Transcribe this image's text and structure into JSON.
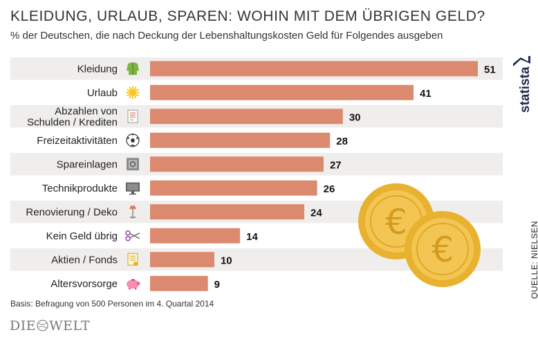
{
  "header": {
    "title": "KLEIDUNG, URLAUB, SPAREN: WOHIN MIT DEM ÜBRIGEN GELD?",
    "subtitle": "% der Deutschen, die nach Deckung der Lebenshaltungskosten Geld für Folgendes ausgeben"
  },
  "chart_data": {
    "type": "bar",
    "orientation": "horizontal",
    "title": "KLEIDUNG, URLAUB, SPAREN: WOHIN MIT DEM ÜBRIGEN GELD?",
    "subtitle": "% der Deutschen, die nach Deckung der Lebenshaltungskosten Geld für Folgendes ausgeben",
    "xlabel": "",
    "ylabel": "",
    "xlim": [
      0,
      51
    ],
    "categories": [
      [
        "Kleidung"
      ],
      [
        "Urlaub"
      ],
      [
        "Abzahlen von",
        "Schulden / Krediten"
      ],
      [
        "Freizeitaktivitäten"
      ],
      [
        "Spareinlagen"
      ],
      [
        "Technikprodukte"
      ],
      [
        "Renovierung / Deko"
      ],
      [
        "Kein Geld übrig"
      ],
      [
        "Aktien / Fonds"
      ],
      [
        "Altersvorsorge"
      ]
    ],
    "values": [
      51,
      41,
      30,
      28,
      27,
      26,
      24,
      14,
      10,
      9
    ],
    "icons": [
      "jacket-icon",
      "sun-icon",
      "invoice-icon",
      "soccer-ball-icon",
      "safe-icon",
      "monitor-icon",
      "lamp-icon",
      "scissors-icon",
      "certificate-icon",
      "piggy-bank-icon"
    ],
    "bar_color": "#db8a6f",
    "stripe_color": "#efeeec"
  },
  "footer": {
    "basis": "Basis: Befragung von 500 Personen im 4. Quartal 2014",
    "source": "QUELLE: NIELSEN",
    "brand": "statista",
    "publisher_left": "DIE",
    "publisher_right": "WELT"
  }
}
